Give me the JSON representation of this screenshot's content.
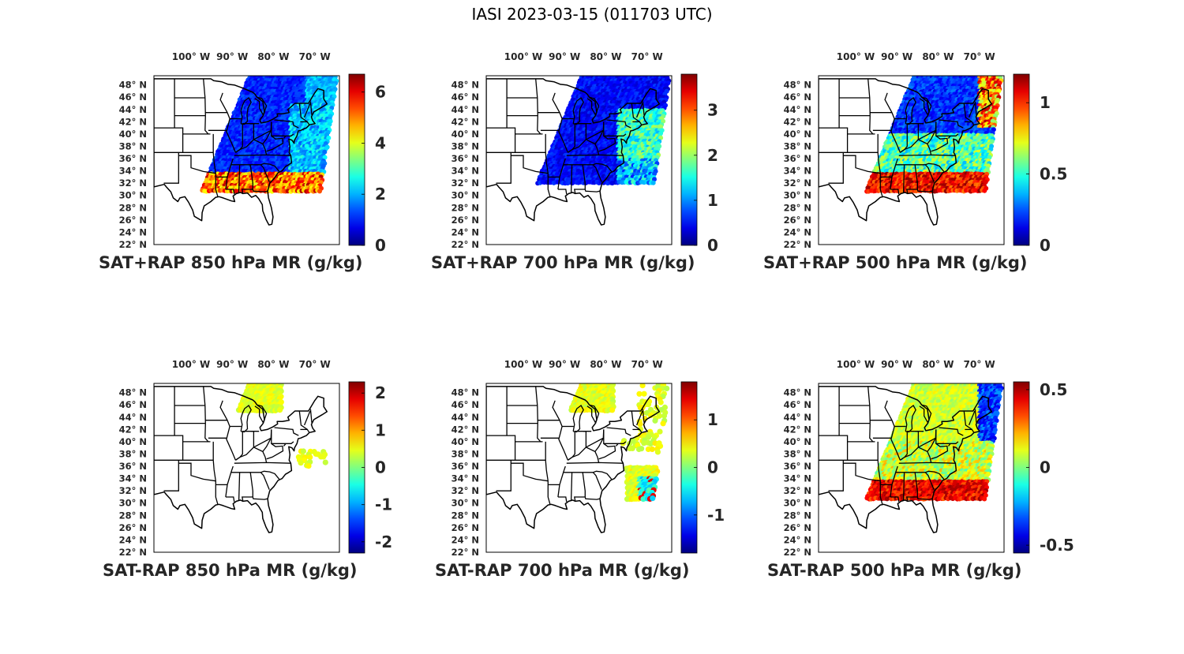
{
  "figure_title": "IASI 2023-03-15 (011703 UTC)",
  "lon_ticks": [
    "100° W",
    "90° W",
    "80° W",
    "70° W"
  ],
  "lat_ticks": [
    "48° N",
    "46° N",
    "44° N",
    "42° N",
    "40° N",
    "38° N",
    "36° N",
    "34° N",
    "32° N",
    "30° N",
    "28° N",
    "26° N",
    "24° N",
    "22° N"
  ],
  "colormap": "jet",
  "panels": [
    {
      "title": "SAT+RAP 850 hPa MR (g/kg)",
      "cbar_range": [
        0,
        6.7
      ],
      "cbar_ticks": [
        "0",
        "2",
        "4",
        "6"
      ],
      "cbar_tick_values": [
        0,
        2,
        4,
        6
      ],
      "field": "sum850"
    },
    {
      "title": "SAT+RAP 700 hPa MR (g/kg)",
      "cbar_range": [
        0,
        3.8
      ],
      "cbar_ticks": [
        "0",
        "1",
        "2",
        "3"
      ],
      "cbar_tick_values": [
        0,
        1,
        2,
        3
      ],
      "field": "sum700"
    },
    {
      "title": "SAT+RAP 500 hPa MR (g/kg)",
      "cbar_range": [
        0,
        1.2
      ],
      "cbar_ticks": [
        "0",
        "0.5",
        "1"
      ],
      "cbar_tick_values": [
        0,
        0.5,
        1
      ],
      "field": "sum500"
    },
    {
      "title": "SAT-RAP 850 hPa MR (g/kg)",
      "cbar_range": [
        -2.3,
        2.3
      ],
      "cbar_ticks": [
        "-2",
        "-1",
        "0",
        "1",
        "2"
      ],
      "cbar_tick_values": [
        -2,
        -1,
        0,
        1,
        2
      ],
      "field": "diff850"
    },
    {
      "title": "SAT-RAP 700 hPa MR (g/kg)",
      "cbar_range": [
        -1.8,
        1.8
      ],
      "cbar_ticks": [
        "-1",
        "0",
        "1"
      ],
      "cbar_tick_values": [
        -1,
        0,
        1
      ],
      "field": "diff700"
    },
    {
      "title": "SAT-RAP 500 hPa MR (g/kg)",
      "cbar_range": [
        -0.55,
        0.55
      ],
      "cbar_ticks": [
        "-0.5",
        "0",
        "0.5"
      ],
      "cbar_tick_values": [
        -0.5,
        0,
        0.5
      ],
      "field": "diff500"
    }
  ]
}
